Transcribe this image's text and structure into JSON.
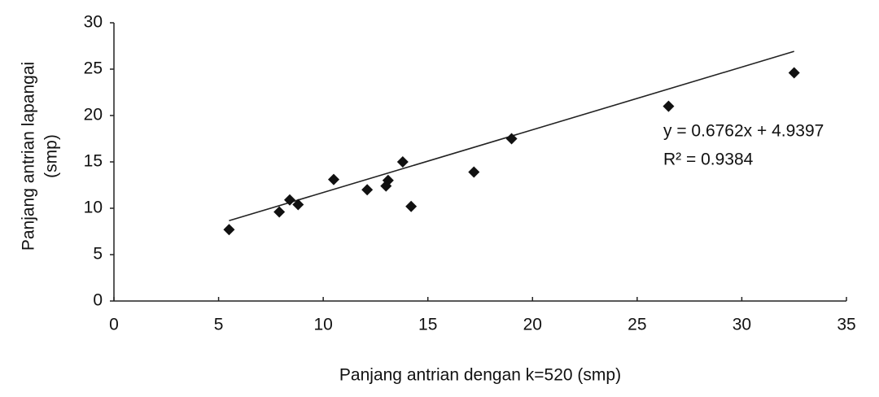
{
  "chart_data": {
    "type": "scatter",
    "xlabel": "Panjang antrian  dengan k=520 (smp)",
    "ylabel_lines": [
      "Panjang antrian lapangai",
      "(smp)"
    ],
    "x": [
      5.5,
      7.9,
      8.4,
      8.8,
      10.5,
      12.1,
      13.1,
      13.0,
      13.8,
      14.2,
      17.2,
      19.0,
      26.5,
      32.5
    ],
    "values": [
      7.7,
      9.6,
      10.9,
      10.4,
      13.1,
      12.0,
      13.0,
      12.4,
      15.0,
      10.2,
      13.9,
      17.5,
      21.0,
      24.6
    ],
    "color": "#111111",
    "xlim": [
      0,
      35
    ],
    "xticks": [
      0,
      5,
      10,
      15,
      20,
      25,
      30,
      35
    ],
    "ylim": [
      0,
      30
    ],
    "yticks": [
      0,
      5,
      10,
      15,
      20,
      25,
      30
    ],
    "grid": false,
    "trendline": {
      "slope": 0.6762,
      "intercept": 4.9397,
      "equation": "y = 0.6762x + 4.9397",
      "r2_label": "R² = 0.9384"
    }
  }
}
